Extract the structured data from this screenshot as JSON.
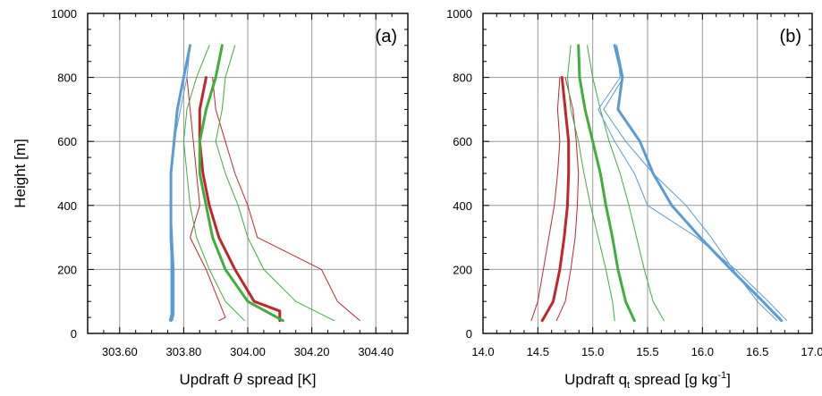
{
  "chart_data": [
    {
      "type": "line",
      "panel_label": "(a)",
      "xlabel_prefix": "Updraft ",
      "xlabel_symbol": "θ",
      "xlabel_suffix": " spread [K]",
      "ylabel": "Height [m]",
      "xlim": [
        303.5,
        304.5
      ],
      "ylim": [
        0,
        1000
      ],
      "xticks": [
        303.6,
        303.8,
        304.0,
        304.2,
        304.4
      ],
      "xtick_labels": [
        "303.60",
        "303.80",
        "304.00",
        "304.20",
        "304.40"
      ],
      "yticks": [
        0,
        200,
        400,
        600,
        800,
        1000
      ],
      "ytick_labels": [
        "0",
        "200",
        "400",
        "600",
        "800",
        "1000"
      ],
      "grid": true,
      "series": [
        {
          "color": "#c0272d",
          "width": 1,
          "points": [
            [
              303.81,
              800
            ],
            [
              303.82,
              700
            ],
            [
              303.83,
              600
            ],
            [
              303.84,
              500
            ],
            [
              303.85,
              400
            ],
            [
              303.82,
              300
            ],
            [
              303.87,
              200
            ],
            [
              303.91,
              100
            ],
            [
              303.93,
              50
            ],
            [
              303.91,
              40
            ]
          ]
        },
        {
          "color": "#c0272d",
          "width": 1,
          "points": [
            [
              303.89,
              800
            ],
            [
              303.9,
              700
            ],
            [
              303.93,
              600
            ],
            [
              303.96,
              500
            ],
            [
              304.0,
              400
            ],
            [
              304.03,
              300
            ],
            [
              304.23,
              200
            ],
            [
              304.28,
              100
            ],
            [
              304.35,
              40
            ]
          ]
        },
        {
          "color": "#c0272d",
          "width": 3,
          "points": [
            [
              303.87,
              800
            ],
            [
              303.85,
              700
            ],
            [
              303.85,
              600
            ],
            [
              303.86,
              500
            ],
            [
              303.88,
              400
            ],
            [
              303.91,
              300
            ],
            [
              303.96,
              200
            ],
            [
              304.02,
              100
            ],
            [
              304.1,
              70
            ],
            [
              304.1,
              40
            ]
          ]
        },
        {
          "color": "#3fae3f",
          "width": 1,
          "points": [
            [
              303.88,
              900
            ],
            [
              303.84,
              800
            ],
            [
              303.81,
              700
            ],
            [
              303.8,
              600
            ],
            [
              303.81,
              500
            ],
            [
              303.82,
              400
            ],
            [
              303.84,
              300
            ],
            [
              303.88,
              200
            ],
            [
              303.93,
              100
            ],
            [
              303.99,
              40
            ]
          ]
        },
        {
          "color": "#3fae3f",
          "width": 1,
          "points": [
            [
              303.96,
              900
            ],
            [
              303.93,
              800
            ],
            [
              303.92,
              700
            ],
            [
              303.9,
              600
            ],
            [
              303.93,
              500
            ],
            [
              303.97,
              400
            ],
            [
              304.0,
              300
            ],
            [
              304.05,
              200
            ],
            [
              304.15,
              100
            ],
            [
              304.27,
              40
            ]
          ]
        },
        {
          "color": "#3fae3f",
          "width": 3,
          "points": [
            [
              303.92,
              900
            ],
            [
              303.9,
              800
            ],
            [
              303.87,
              700
            ],
            [
              303.85,
              600
            ],
            [
              303.85,
              500
            ],
            [
              303.87,
              400
            ],
            [
              303.89,
              300
            ],
            [
              303.93,
              200
            ],
            [
              304.0,
              100
            ],
            [
              304.11,
              40
            ]
          ]
        },
        {
          "color": "#5b9bd5",
          "width": 1,
          "points": [
            [
              303.82,
              900
            ],
            [
              303.8,
              800
            ],
            [
              303.78,
              700
            ],
            [
              303.77,
              600
            ],
            [
              303.76,
              500
            ],
            [
              303.76,
              400
            ],
            [
              303.76,
              300
            ],
            [
              303.76,
              200
            ],
            [
              303.76,
              100
            ],
            [
              303.76,
              60
            ],
            [
              303.755,
              40
            ]
          ]
        },
        {
          "color": "#5b9bd5",
          "width": 1,
          "points": [
            [
              303.82,
              900
            ],
            [
              303.81,
              800
            ],
            [
              303.79,
              700
            ],
            [
              303.77,
              600
            ],
            [
              303.76,
              500
            ],
            [
              303.76,
              400
            ],
            [
              303.765,
              300
            ],
            [
              303.77,
              200
            ],
            [
              303.77,
              100
            ],
            [
              303.77,
              60
            ],
            [
              303.765,
              40
            ]
          ]
        },
        {
          "color": "#5b9bd5",
          "width": 3,
          "points": [
            [
              303.82,
              900
            ],
            [
              303.8,
              800
            ],
            [
              303.78,
              700
            ],
            [
              303.77,
              600
            ],
            [
              303.76,
              500
            ],
            [
              303.76,
              400
            ],
            [
              303.76,
              300
            ],
            [
              303.765,
              200
            ],
            [
              303.765,
              100
            ],
            [
              303.765,
              60
            ],
            [
              303.76,
              40
            ]
          ]
        }
      ]
    },
    {
      "type": "line",
      "panel_label": "(b)",
      "xlabel_prefix": "Updraft q",
      "xlabel_sub": "t",
      "xlabel_mid": " spread [g kg",
      "xlabel_sup": "-1",
      "xlabel_suffix": "]",
      "ylabel": "",
      "xlim": [
        14.0,
        17.0
      ],
      "ylim": [
        0,
        1000
      ],
      "xticks": [
        14.0,
        14.5,
        15.0,
        15.5,
        16.0,
        16.5,
        17.0
      ],
      "xtick_labels": [
        "14.0",
        "14.5",
        "15.0",
        "15.5",
        "16.0",
        "16.5",
        "17.0"
      ],
      "yticks": [
        0,
        200,
        400,
        600,
        800,
        1000
      ],
      "ytick_labels": [
        "0",
        "200",
        "400",
        "600",
        "800",
        "1000"
      ],
      "grid": true,
      "series": [
        {
          "color": "#c0272d",
          "width": 1,
          "points": [
            [
              14.7,
              800
            ],
            [
              14.68,
              700
            ],
            [
              14.7,
              600
            ],
            [
              14.68,
              500
            ],
            [
              14.65,
              400
            ],
            [
              14.6,
              300
            ],
            [
              14.55,
              200
            ],
            [
              14.5,
              100
            ],
            [
              14.44,
              40
            ]
          ]
        },
        {
          "color": "#c0272d",
          "width": 1,
          "points": [
            [
              14.75,
              800
            ],
            [
              14.82,
              700
            ],
            [
              14.85,
              600
            ],
            [
              14.87,
              500
            ],
            [
              14.86,
              400
            ],
            [
              14.84,
              300
            ],
            [
              14.8,
              200
            ],
            [
              14.75,
              100
            ],
            [
              14.67,
              40
            ]
          ]
        },
        {
          "color": "#c0272d",
          "width": 3,
          "points": [
            [
              14.72,
              800
            ],
            [
              14.75,
              700
            ],
            [
              14.78,
              600
            ],
            [
              14.78,
              500
            ],
            [
              14.77,
              400
            ],
            [
              14.74,
              300
            ],
            [
              14.7,
              200
            ],
            [
              14.64,
              100
            ],
            [
              14.54,
              40
            ]
          ]
        },
        {
          "color": "#3fae3f",
          "width": 1,
          "points": [
            [
              14.8,
              900
            ],
            [
              14.77,
              800
            ],
            [
              14.8,
              700
            ],
            [
              14.87,
              600
            ],
            [
              14.92,
              500
            ],
            [
              14.98,
              400
            ],
            [
              15.05,
              300
            ],
            [
              15.12,
              200
            ],
            [
              15.18,
              100
            ],
            [
              15.2,
              40
            ]
          ]
        },
        {
          "color": "#3fae3f",
          "width": 1,
          "points": [
            [
              14.95,
              900
            ],
            [
              15.0,
              800
            ],
            [
              15.07,
              700
            ],
            [
              15.15,
              600
            ],
            [
              15.25,
              500
            ],
            [
              15.33,
              400
            ],
            [
              15.4,
              300
            ],
            [
              15.47,
              200
            ],
            [
              15.55,
              100
            ],
            [
              15.65,
              40
            ]
          ]
        },
        {
          "color": "#3fae3f",
          "width": 3,
          "points": [
            [
              14.87,
              900
            ],
            [
              14.88,
              800
            ],
            [
              14.93,
              700
            ],
            [
              15.0,
              600
            ],
            [
              15.07,
              500
            ],
            [
              15.12,
              400
            ],
            [
              15.18,
              300
            ],
            [
              15.23,
              200
            ],
            [
              15.3,
              100
            ],
            [
              15.38,
              40
            ]
          ]
        },
        {
          "color": "#5b9bd5",
          "width": 1,
          "points": [
            [
              15.22,
              900
            ],
            [
              15.25,
              800
            ],
            [
              15.05,
              700
            ],
            [
              15.2,
              600
            ],
            [
              15.38,
              500
            ],
            [
              15.5,
              400
            ],
            [
              15.95,
              300
            ],
            [
              16.3,
              200
            ],
            [
              16.6,
              100
            ],
            [
              16.77,
              40
            ]
          ]
        },
        {
          "color": "#5b9bd5",
          "width": 1,
          "points": [
            [
              15.22,
              900
            ],
            [
              15.28,
              800
            ],
            [
              15.1,
              700
            ],
            [
              15.3,
              600
            ],
            [
              15.55,
              500
            ],
            [
              15.85,
              400
            ],
            [
              16.08,
              300
            ],
            [
              16.28,
              200
            ],
            [
              16.5,
              100
            ],
            [
              16.68,
              40
            ]
          ]
        },
        {
          "color": "#5b9bd5",
          "width": 3,
          "points": [
            [
              15.2,
              900
            ],
            [
              15.27,
              800
            ],
            [
              15.23,
              700
            ],
            [
              15.43,
              600
            ],
            [
              15.55,
              500
            ],
            [
              15.72,
              400
            ],
            [
              15.98,
              300
            ],
            [
              16.26,
              200
            ],
            [
              16.55,
              100
            ],
            [
              16.72,
              40
            ]
          ]
        }
      ]
    }
  ]
}
